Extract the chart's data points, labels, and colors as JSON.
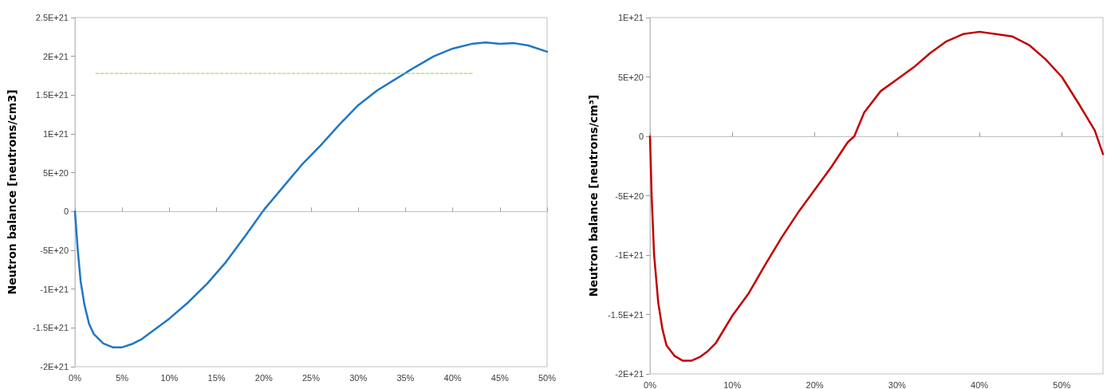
{
  "chart_data": [
    {
      "type": "line",
      "ylabel": "Neutron balance [neutrons/cm3]",
      "xlim": [
        0,
        50
      ],
      "xticks": [
        {
          "value": 0,
          "label": "0%"
        },
        {
          "value": 5,
          "label": "5%"
        },
        {
          "value": 10,
          "label": "10%"
        },
        {
          "value": 15,
          "label": "15%"
        },
        {
          "value": 20,
          "label": "20%"
        },
        {
          "value": 25,
          "label": "25%"
        },
        {
          "value": 30,
          "label": "30%"
        },
        {
          "value": 35,
          "label": "35%"
        },
        {
          "value": 40,
          "label": "40%"
        },
        {
          "value": 45,
          "label": "45%"
        },
        {
          "value": 50,
          "label": "50%"
        }
      ],
      "ylim": [
        -2e+21,
        2.5e+21
      ],
      "marker": "none",
      "yticks": [
        {
          "value": -2e+21,
          "label": "-2E+21"
        },
        {
          "value": -1.5e+21,
          "label": "-1.5E+21"
        },
        {
          "value": -1e+21,
          "label": "-1E+21"
        },
        {
          "value": -5e+20,
          "label": "-5E+20"
        },
        0,
        {
          "value": 5e+20,
          "label": "5E+20"
        },
        {
          "value": 1e+21,
          "label": "1E+21"
        },
        {
          "value": 1.5e+21,
          "label": "1.5E+21"
        },
        {
          "value": 2e+21,
          "label": "2E+21"
        },
        {
          "value": 2.5e+21,
          "label": "2.5E+21"
        }
      ],
      "series": [
        {
          "color": "#1f77c4",
          "line_style": "solid",
          "x": [
            0,
            0.3,
            0.6,
            1,
            1.5,
            2,
            3,
            4,
            5,
            6,
            7,
            8,
            10,
            12,
            14,
            16,
            18,
            19,
            20,
            22,
            24,
            26,
            28,
            30,
            32,
            34,
            36,
            38,
            40,
            42,
            43.5,
            45,
            46.5,
            48,
            50
          ],
          "values": [
            0,
            -5e+20,
            -9e+20,
            -1.2e+21,
            -1.45e+21,
            -1.58e+21,
            -1.7e+21,
            -1.75e+21,
            -1.75e+21,
            -1.71e+21,
            -1.65e+21,
            -1.56e+21,
            -1.38e+21,
            -1.17e+21,
            -9.3e+20,
            -6.5e+20,
            -3.2e+20,
            -1.5e+20,
            2e+19,
            3.1e+20,
            6e+20,
            8.5e+20,
            1.12e+21,
            1.37e+21,
            1.56e+21,
            1.71e+21,
            1.86e+21,
            2e+21,
            2.1e+21,
            2.16e+21,
            2.18e+21,
            2.16e+21,
            2.17e+21,
            2.14e+21,
            2.06e+21
          ]
        },
        {
          "color": "#92d050",
          "line_style": "dashed",
          "x": [
            2.2,
            42.2
          ],
          "values": [
            1.78e+21,
            1.78e+21
          ]
        }
      ]
    },
    {
      "type": "line",
      "ylabel": "Neutron balance [neutrons/cm³]",
      "xlim": [
        0,
        55
      ],
      "xticks": [
        {
          "value": 0,
          "label": "0%"
        },
        {
          "value": 10,
          "label": "10%"
        },
        {
          "value": 20,
          "label": "20%"
        },
        {
          "value": 30,
          "label": "30%"
        },
        {
          "value": 40,
          "label": "40%"
        },
        {
          "value": 50,
          "label": "50%"
        }
      ],
      "ylim": [
        -2e+21,
        1e+21
      ],
      "yticks": [
        {
          "value": -2e+21,
          "label": "-2E+21"
        },
        {
          "value": -1.5e+21,
          "label": "-1.5E+21"
        },
        {
          "value": -1e+21,
          "label": "-1E+21"
        },
        {
          "value": -5e+20,
          "label": "-5E+20"
        },
        0,
        {
          "value": 5e+20,
          "label": "5E+20"
        },
        {
          "value": 1e+21,
          "label": "1E+21"
        }
      ],
      "marker": "none",
      "series": [
        {
          "color": "#c00000",
          "line_style": "solid",
          "x": [
            0,
            0.2,
            0.5,
            1,
            1.5,
            2,
            3,
            4,
            5,
            6,
            7,
            8,
            10,
            12,
            14,
            16,
            18,
            20,
            22,
            24,
            24.8,
            26,
            28,
            30,
            32,
            34,
            36,
            38,
            40,
            42,
            44,
            46,
            48,
            50,
            52,
            54,
            55
          ],
          "values": [
            0,
            -5e+20,
            -1e+21,
            -1.4e+21,
            -1.62e+21,
            -1.76e+21,
            -1.85e+21,
            -1.89e+21,
            -1.89e+21,
            -1.86e+21,
            -1.81e+21,
            -1.74e+21,
            -1.51e+21,
            -1.32e+21,
            -1.08e+21,
            -8.5e+20,
            -6.4e+20,
            -4.5e+20,
            -2.6e+20,
            -5e+19,
            0,
            2e+20,
            3.8e+20,
            4.8e+20,
            5.8e+20,
            7e+20,
            8e+20,
            8.6e+20,
            8.8e+20,
            8.6e+20,
            8.4e+20,
            7.7e+20,
            6.5e+20,
            5e+20,
            2.8e+20,
            5e+19,
            -1.5e+20
          ]
        }
      ]
    }
  ]
}
